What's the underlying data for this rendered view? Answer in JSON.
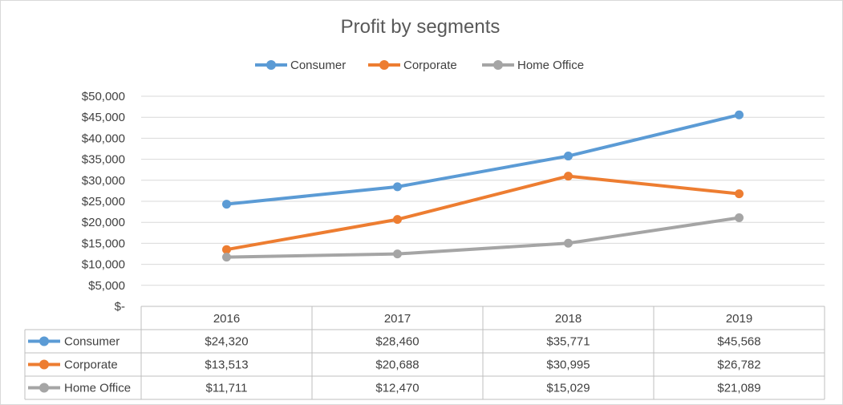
{
  "chart_data": {
    "type": "line",
    "title": "Profit by segments",
    "categories": [
      "2016",
      "2017",
      "2018",
      "2019"
    ],
    "series": [
      {
        "name": "Consumer",
        "color": "#5b9bd5",
        "values": [
          24320,
          28460,
          35771,
          45568
        ],
        "labels": [
          "$24,320",
          "$28,460",
          "$35,771",
          "$45,568"
        ]
      },
      {
        "name": "Corporate",
        "color": "#ed7d31",
        "values": [
          13513,
          20688,
          30995,
          26782
        ],
        "labels": [
          "$13,513",
          "$20,688",
          "$30,995",
          "$26,782"
        ]
      },
      {
        "name": "Home Office",
        "color": "#a5a5a5",
        "values": [
          11711,
          12470,
          15029,
          21089
        ],
        "labels": [
          "$11,711",
          "$12,470",
          "$15,029",
          "$21,089"
        ]
      }
    ],
    "ylim": [
      0,
      50000
    ],
    "yticks": [
      0,
      5000,
      10000,
      15000,
      20000,
      25000,
      30000,
      35000,
      40000,
      45000,
      50000
    ],
    "ytick_labels": [
      "$-",
      "$5,000",
      "$10,000",
      "$15,000",
      "$20,000",
      "$25,000",
      "$30,000",
      "$35,000",
      "$40,000",
      "$45,000",
      "$50,000"
    ],
    "legend_position": "top",
    "grid": true,
    "data_table": true
  }
}
